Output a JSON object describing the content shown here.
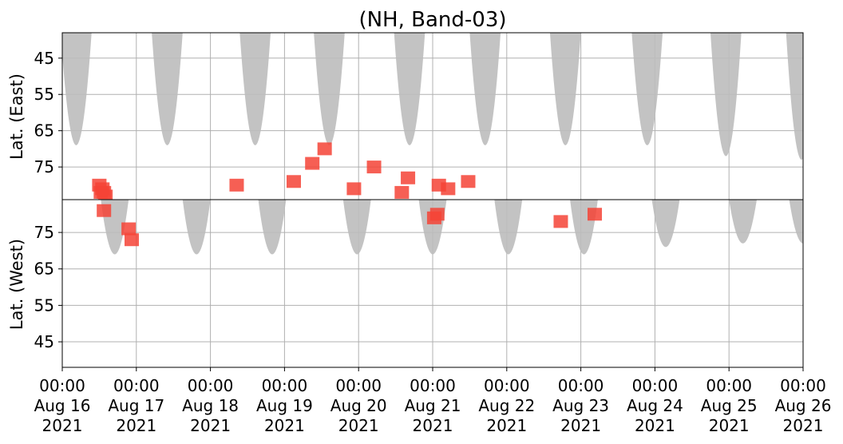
{
  "chart_data": {
    "type": "heatmap",
    "title": "(NH, Band-03)",
    "x_axis": {
      "range": [
        "2021-08-16T00:00",
        "2021-08-26T00:00"
      ],
      "ticks": [
        {
          "date": "2021-08-16T00:00",
          "label": "00:00\nAug 16\n2021"
        },
        {
          "date": "2021-08-17T00:00",
          "label": "00:00\nAug 17\n2021"
        },
        {
          "date": "2021-08-18T00:00",
          "label": "00:00\nAug 18\n2021"
        },
        {
          "date": "2021-08-19T00:00",
          "label": "00:00\nAug 19\n2021"
        },
        {
          "date": "2021-08-20T00:00",
          "label": "00:00\nAug 20\n2021"
        },
        {
          "date": "2021-08-21T00:00",
          "label": "00:00\nAug 21\n2021"
        },
        {
          "date": "2021-08-22T00:00",
          "label": "00:00\nAug 22\n2021"
        },
        {
          "date": "2021-08-23T00:00",
          "label": "00:00\nAug 23\n2021"
        },
        {
          "date": "2021-08-24T00:00",
          "label": "00:00\nAug 24\n2021"
        },
        {
          "date": "2021-08-25T00:00",
          "label": "00:00\nAug 25\n2021"
        },
        {
          "date": "2021-08-26T00:00",
          "label": "00:00\nAug 26\n2021"
        }
      ]
    },
    "panels": [
      {
        "name": "east",
        "ylabel": "Lat. (East)",
        "ylim": [
          38,
          84
        ],
        "y_direction": "increasing_downward",
        "yticks": [
          45,
          55,
          65,
          75
        ],
        "grid": true,
        "coverage_color": "#bdbdbd",
        "coverage_day_arcs": [
          {
            "center": "2021-08-16T04:30",
            "min_lat": 69,
            "half_width_at_edge_h": 5.0
          },
          {
            "center": "2021-08-17T10:00",
            "min_lat": 69,
            "half_width_at_edge_h": 5.0
          },
          {
            "center": "2021-08-18T14:30",
            "min_lat": 69,
            "half_width_at_edge_h": 5.0
          },
          {
            "center": "2021-08-19T14:30",
            "min_lat": 69,
            "half_width_at_edge_h": 5.0
          },
          {
            "center": "2021-08-20T16:30",
            "min_lat": 69,
            "half_width_at_edge_h": 5.0
          },
          {
            "center": "2021-08-21T17:00",
            "min_lat": 69,
            "half_width_at_edge_h": 5.0
          },
          {
            "center": "2021-08-22T19:00",
            "min_lat": 69,
            "half_width_at_edge_h": 5.0
          },
          {
            "center": "2021-08-23T21:30",
            "min_lat": 69,
            "half_width_at_edge_h": 5.0
          },
          {
            "center": "2021-08-24T23:00",
            "min_lat": 72,
            "half_width_at_edge_h": 5.0
          },
          {
            "center": "2021-08-25T23:30",
            "min_lat": 73,
            "half_width_at_edge_h": 5.0
          }
        ],
        "detection_color": "#f44336",
        "detections": [
          {
            "t": "2021-08-16T12:00",
            "lat": 80
          },
          {
            "t": "2021-08-16T12:30",
            "lat": 82
          },
          {
            "t": "2021-08-16T13:00",
            "lat": 81
          },
          {
            "t": "2021-08-16T13:30",
            "lat": 82
          },
          {
            "t": "2021-08-16T14:00",
            "lat": 83
          },
          {
            "t": "2021-08-18T08:30",
            "lat": 80
          },
          {
            "t": "2021-08-19T03:00",
            "lat": 79
          },
          {
            "t": "2021-08-19T09:00",
            "lat": 74
          },
          {
            "t": "2021-08-19T13:00",
            "lat": 70
          },
          {
            "t": "2021-08-19T22:30",
            "lat": 81
          },
          {
            "t": "2021-08-20T05:00",
            "lat": 75
          },
          {
            "t": "2021-08-20T14:00",
            "lat": 82
          },
          {
            "t": "2021-08-20T16:00",
            "lat": 78
          },
          {
            "t": "2021-08-21T02:00",
            "lat": 80
          },
          {
            "t": "2021-08-21T05:00",
            "lat": 81
          },
          {
            "t": "2021-08-21T11:30",
            "lat": 79
          }
        ]
      },
      {
        "name": "west",
        "ylabel": "Lat. (West)",
        "ylim": [
          84,
          38
        ],
        "y_direction": "increasing_upward",
        "yticks": [
          45,
          55,
          65,
          75
        ],
        "grid": true,
        "coverage_color": "#bdbdbd",
        "coverage_day_arcs": [
          {
            "center": "2021-08-16T17:00",
            "min_lat": 69,
            "half_width_at_edge_h": 4.5
          },
          {
            "center": "2021-08-17T19:30",
            "min_lat": 69,
            "half_width_at_edge_h": 4.5
          },
          {
            "center": "2021-08-18T20:00",
            "min_lat": 69,
            "half_width_at_edge_h": 4.5
          },
          {
            "center": "2021-08-19T23:30",
            "min_lat": 69,
            "half_width_at_edge_h": 4.5
          },
          {
            "center": "2021-08-21T00:00",
            "min_lat": 69,
            "half_width_at_edge_h": 4.5
          },
          {
            "center": "2021-08-22T00:30",
            "min_lat": 69,
            "half_width_at_edge_h": 4.5
          },
          {
            "center": "2021-08-23T01:00",
            "min_lat": 69,
            "half_width_at_edge_h": 4.5
          },
          {
            "center": "2021-08-24T03:30",
            "min_lat": 71,
            "half_width_at_edge_h": 4.5
          },
          {
            "center": "2021-08-25T04:30",
            "min_lat": 72,
            "half_width_at_edge_h": 4.5
          },
          {
            "center": "2021-08-26T00:00",
            "min_lat": 72,
            "half_width_at_edge_h": 4.5
          }
        ],
        "detection_color": "#f44336",
        "detections": [
          {
            "t": "2021-08-16T13:30",
            "lat": 81
          },
          {
            "t": "2021-08-16T21:30",
            "lat": 76
          },
          {
            "t": "2021-08-16T22:30",
            "lat": 73
          },
          {
            "t": "2021-08-21T00:30",
            "lat": 79
          },
          {
            "t": "2021-08-21T01:30",
            "lat": 80
          },
          {
            "t": "2021-08-22T17:30",
            "lat": 78
          },
          {
            "t": "2021-08-23T04:30",
            "lat": 80
          }
        ]
      }
    ]
  }
}
